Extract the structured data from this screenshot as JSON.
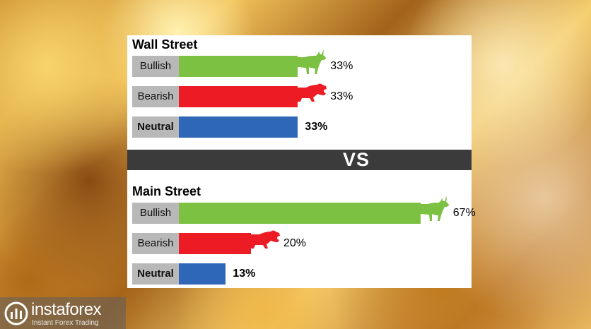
{
  "chart_data": [
    {
      "type": "bar",
      "title": "Wall Street",
      "categories": [
        "Bullish",
        "Bearish",
        "Neutral"
      ],
      "values": [
        33,
        33,
        33
      ],
      "value_labels": [
        "33%",
        "33%",
        "33%"
      ],
      "colors": [
        "#7cc142",
        "#ed1c24",
        "#2f67b8"
      ]
    },
    {
      "type": "bar",
      "title": "Main Street",
      "categories": [
        "Bullish",
        "Bearish",
        "Neutral"
      ],
      "values": [
        67,
        20,
        13
      ],
      "value_labels": [
        "67%",
        "20%",
        "13%"
      ],
      "colors": [
        "#7cc142",
        "#ed1c24",
        "#2f67b8"
      ]
    }
  ],
  "vs_label": "VS",
  "logo": {
    "name": "instaforex",
    "tagline": "Instant Forex Trading"
  },
  "icons": {
    "bull": "bull-icon",
    "bear": "bear-icon",
    "logo_mark": "instaforex-logo-icon"
  }
}
